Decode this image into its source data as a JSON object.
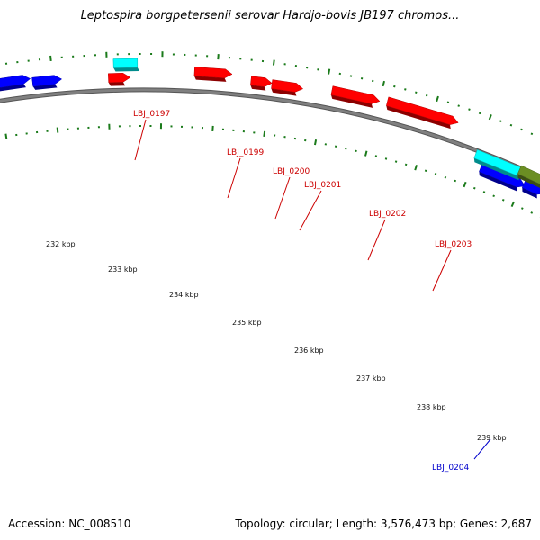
{
  "title": "Leptospira borgpetersenii serovar Hardjo-bovis JB197 chromos...",
  "footer": {
    "accession": "Accession: NC_008510",
    "summary": "Topology: circular; Length: 3,576,473 bp; Genes: 2,687"
  },
  "colors": {
    "backbone": "#808080",
    "tick": "#1a7a1a",
    "forward_gene": "#ff0000",
    "reverse_gene": "#0000ff",
    "rna_gene": "#00ffff",
    "other_gene": "#6b8e23",
    "label_forward": "#cc0000",
    "label_reverse": "#0000cc"
  },
  "scale_labels": [
    "232 kbp",
    "233 kbp",
    "234 kbp",
    "235 kbp",
    "236 kbp",
    "237 kbp",
    "238 kbp",
    "239 kbp"
  ],
  "gene_labels": [
    {
      "text": "LBJ_0197",
      "strand": "forward"
    },
    {
      "text": "LBJ_0199",
      "strand": "forward"
    },
    {
      "text": "LBJ_0200",
      "strand": "forward"
    },
    {
      "text": "LBJ_0201",
      "strand": "forward"
    },
    {
      "text": "LBJ_0202",
      "strand": "forward"
    },
    {
      "text": "LBJ_0203",
      "strand": "forward"
    },
    {
      "text": "LBJ_0204",
      "strand": "reverse"
    }
  ]
}
